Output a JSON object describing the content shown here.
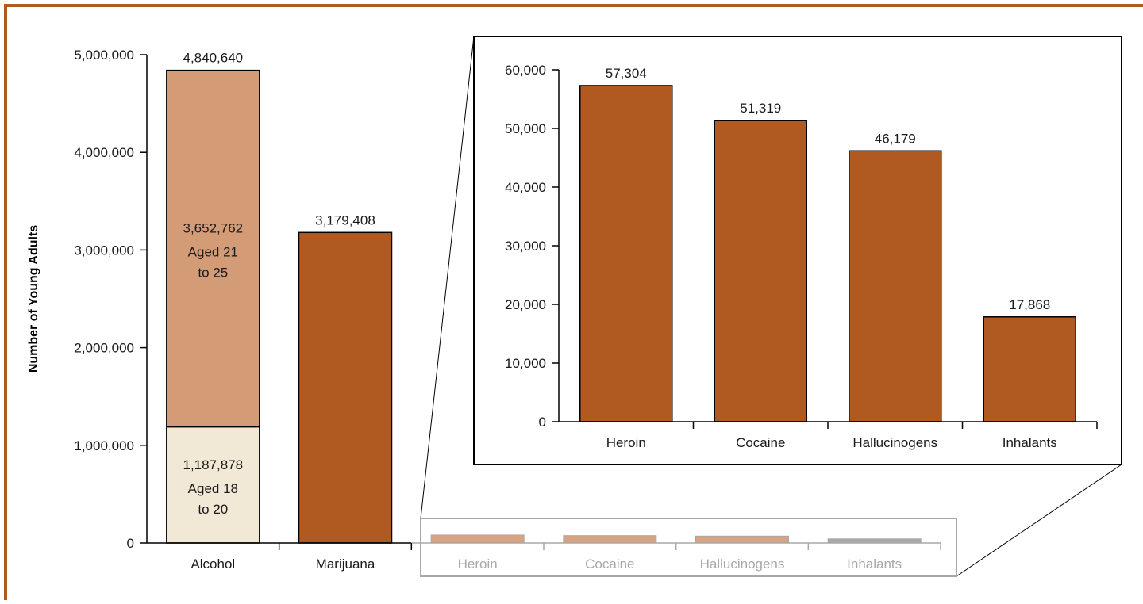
{
  "colors": {
    "frame": "#b05a20",
    "bar": "#b05a22",
    "alcohol_21_25": "#d49c76",
    "alcohol_18_20": "#f2e8d6",
    "faded_bar": "#d7a383",
    "faded_bar_last": "#a9a9a9"
  },
  "chart_data": [
    {
      "type": "bar",
      "stacked": true,
      "ylabel": "Number of Young Adults",
      "ylim": [
        0,
        5000000
      ],
      "yticks": [
        "0",
        "1,000,000",
        "2,000,000",
        "3,000,000",
        "4,000,000",
        "5,000,000"
      ],
      "categories": [
        "Alcohol",
        "Marijuana",
        "Heroin",
        "Cocaine",
        "Hallucinogens",
        "Inhalants"
      ],
      "series": [
        {
          "values": [
            1187878,
            3179408,
            57304,
            51319,
            46179,
            17868
          ]
        },
        {
          "values": [
            3652762,
            0,
            0,
            0,
            0,
            0
          ]
        }
      ],
      "totals": [
        "4,840,640",
        "3,179,408"
      ],
      "segment_labels": {
        "alcohol_upper": {
          "value": "3,652,762",
          "line1": "Aged 21",
          "line2": "to 25"
        },
        "alcohol_lower": {
          "value": "1,187,878",
          "line1": "Aged 18",
          "line2": "to 20"
        }
      },
      "grid": false
    },
    {
      "type": "bar",
      "ylim": [
        0,
        60000
      ],
      "yticks": [
        "0",
        "10,000",
        "20,000",
        "30,000",
        "40,000",
        "50,000",
        "60,000"
      ],
      "categories": [
        "Heroin",
        "Cocaine",
        "Hallucinogens",
        "Inhalants"
      ],
      "values": [
        57304,
        51319,
        46179,
        17868
      ],
      "value_labels": [
        "57,304",
        "51,319",
        "46,179",
        "17,868"
      ],
      "grid": false
    }
  ]
}
